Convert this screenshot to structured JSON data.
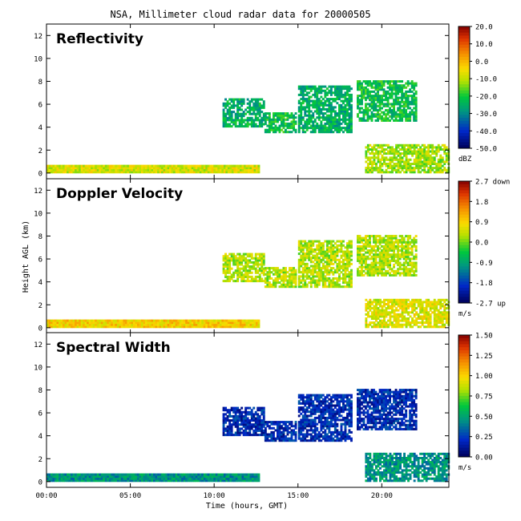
{
  "figure": {
    "title": "NSA, Millimeter cloud radar data for 20000505",
    "xlabel": "Time (hours, GMT)",
    "ylabel": "Height AGL (km)"
  },
  "chart_data": [
    {
      "type": "heatmap",
      "title": "Reflectivity",
      "xlabel": "Time (hours, GMT)",
      "ylabel": "Height AGL (km)",
      "xlim": [
        0,
        24
      ],
      "ylim": [
        -0.5,
        13
      ],
      "x_ticks": [
        "00:00",
        "05:00",
        "10:00",
        "15:00",
        "20:00"
      ],
      "y_ticks": [
        0,
        2,
        4,
        6,
        8,
        10,
        12
      ],
      "colorbar": {
        "unit": "dBZ",
        "range": [
          -50,
          20
        ],
        "tick_labels": [
          "20.0",
          "10.0",
          "0.0",
          "-10.0",
          "-20.0",
          "-30.0",
          "-40.0",
          "-50.0"
        ]
      },
      "cloud_regions": [
        {
          "t": [
            0.0,
            12.6
          ],
          "h": [
            0.0,
            0.6
          ],
          "value": -8
        },
        {
          "t": [
            10.5,
            13.0
          ],
          "h": [
            4.0,
            6.5
          ],
          "value": -25
        },
        {
          "t": [
            13.0,
            14.8
          ],
          "h": [
            3.5,
            5.2
          ],
          "value": -22
        },
        {
          "t": [
            15.0,
            18.2
          ],
          "h": [
            3.5,
            7.5
          ],
          "value": -25
        },
        {
          "t": [
            18.5,
            22.0
          ],
          "h": [
            4.5,
            8.0
          ],
          "value": -22
        },
        {
          "t": [
            19.0,
            24.0
          ],
          "h": [
            0.0,
            2.5
          ],
          "value": -12
        }
      ]
    },
    {
      "type": "heatmap",
      "title": "Doppler Velocity",
      "xlabel": "Time (hours, GMT)",
      "ylabel": "Height AGL (km)",
      "xlim": [
        0,
        24
      ],
      "ylim": [
        -0.5,
        13
      ],
      "x_ticks": [
        "00:00",
        "05:00",
        "10:00",
        "15:00",
        "20:00"
      ],
      "y_ticks": [
        0,
        2,
        4,
        6,
        8,
        10,
        12
      ],
      "colorbar": {
        "unit": "m/s",
        "range": [
          -2.7,
          2.7
        ],
        "tick_labels": [
          "2.7 down",
          "1.8",
          "0.9",
          "0.0",
          "-0.9",
          "-1.8",
          "-2.7 up"
        ]
      },
      "cloud_regions": [
        {
          "t": [
            0.0,
            12.6
          ],
          "h": [
            0.0,
            0.6
          ],
          "value": 0.9
        },
        {
          "t": [
            10.5,
            13.0
          ],
          "h": [
            4.0,
            6.5
          ],
          "value": 0.3
        },
        {
          "t": [
            13.0,
            14.8
          ],
          "h": [
            3.5,
            5.2
          ],
          "value": 0.3
        },
        {
          "t": [
            15.0,
            18.2
          ],
          "h": [
            3.5,
            7.5
          ],
          "value": 0.3
        },
        {
          "t": [
            18.5,
            22.0
          ],
          "h": [
            4.5,
            8.0
          ],
          "value": 0.3
        },
        {
          "t": [
            19.0,
            24.0
          ],
          "h": [
            0.0,
            2.5
          ],
          "value": 0.6
        }
      ]
    },
    {
      "type": "heatmap",
      "title": "Spectral Width",
      "xlabel": "Time (hours, GMT)",
      "ylabel": "Height AGL (km)",
      "xlim": [
        0,
        24
      ],
      "ylim": [
        -0.5,
        13
      ],
      "x_ticks": [
        "00:00",
        "05:00",
        "10:00",
        "15:00",
        "20:00"
      ],
      "y_ticks": [
        0,
        2,
        4,
        6,
        8,
        10,
        12
      ],
      "colorbar": {
        "unit": "m/s",
        "range": [
          0,
          1.5
        ],
        "tick_labels": [
          "1.50",
          "1.25",
          "1.00",
          "0.75",
          "0.50",
          "0.25",
          "0.00"
        ]
      },
      "cloud_regions": [
        {
          "t": [
            0.0,
            12.6
          ],
          "h": [
            0.0,
            0.6
          ],
          "value": 0.45
        },
        {
          "t": [
            10.5,
            13.0
          ],
          "h": [
            4.0,
            6.5
          ],
          "value": 0.2
        },
        {
          "t": [
            13.0,
            14.8
          ],
          "h": [
            3.5,
            5.2
          ],
          "value": 0.2
        },
        {
          "t": [
            15.0,
            18.2
          ],
          "h": [
            3.5,
            7.5
          ],
          "value": 0.2
        },
        {
          "t": [
            18.5,
            22.0
          ],
          "h": [
            4.5,
            8.0
          ],
          "value": 0.2
        },
        {
          "t": [
            19.0,
            24.0
          ],
          "h": [
            0.0,
            2.5
          ],
          "value": 0.45
        }
      ]
    }
  ]
}
